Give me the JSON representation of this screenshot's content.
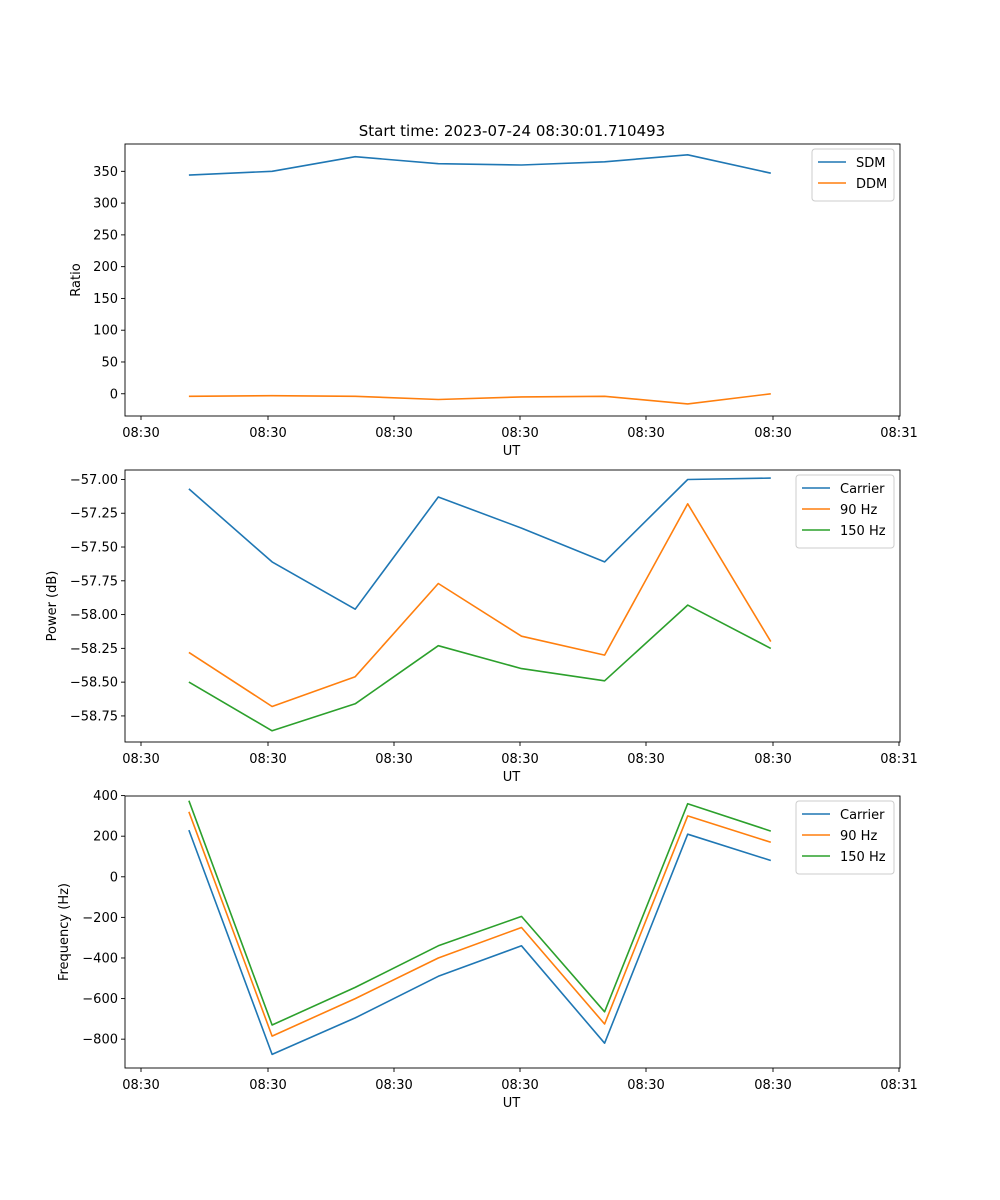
{
  "figure_title": "Start time: 2023-07-24 08:30:01.710493",
  "colors": {
    "blue": "#1f77b4",
    "orange": "#ff7f0e",
    "green": "#2ca02c"
  },
  "chart_data": [
    {
      "type": "line",
      "xlabel": "UT",
      "ylabel": "Ratio",
      "x_ticks": [
        "08:30",
        "08:30",
        "08:30",
        "08:30",
        "08:30",
        "08:30",
        "08:30"
      ],
      "x_last_tick": "08:31",
      "xlim": [
        0,
        6.06
      ],
      "x": [
        0.5,
        1.15,
        1.8,
        2.45,
        3.1,
        3.75,
        4.4,
        5.05
      ],
      "ylim": [
        -35,
        393
      ],
      "y_ticks": [
        0,
        50,
        100,
        150,
        200,
        250,
        300,
        350
      ],
      "y_tick_labels": [
        "0",
        "50",
        "100",
        "150",
        "200",
        "250",
        "300",
        "350"
      ],
      "legend": "top-right",
      "series": [
        {
          "name": "SDM",
          "color": "#1f77b4",
          "values": [
            344,
            350,
            373,
            362,
            360,
            365,
            376,
            347
          ]
        },
        {
          "name": "DDM",
          "color": "#ff7f0e",
          "values": [
            -4,
            -3,
            -4,
            -9,
            -5,
            -4,
            -16,
            0
          ]
        }
      ]
    },
    {
      "type": "line",
      "xlabel": "UT",
      "ylabel": "Power (dB)",
      "x_ticks": [
        "08:30",
        "08:30",
        "08:30",
        "08:30",
        "08:30",
        "08:30",
        "08:30"
      ],
      "x_last_tick": "08:31",
      "xlim": [
        0,
        6.06
      ],
      "x": [
        0.5,
        1.15,
        1.8,
        2.45,
        3.1,
        3.75,
        4.4,
        5.05
      ],
      "ylim": [
        -58.943,
        -56.93
      ],
      "y_ticks": [
        -58.75,
        -58.5,
        -58.25,
        -58.0,
        -57.75,
        -57.5,
        -57.25,
        -57.0
      ],
      "y_tick_labels": [
        "−58.75",
        "−58.50",
        "−58.25",
        "−58.00",
        "−57.75",
        "−57.50",
        "−57.25",
        "−57.00"
      ],
      "legend": "top-right",
      "series": [
        {
          "name": "Carrier",
          "color": "#1f77b4",
          "values": [
            -57.07,
            -57.61,
            -57.96,
            -57.13,
            -57.36,
            -57.61,
            -57.0,
            -56.99
          ]
        },
        {
          "name": "90 Hz",
          "color": "#ff7f0e",
          "values": [
            -58.28,
            -58.68,
            -58.46,
            -57.77,
            -58.16,
            -58.3,
            -57.18,
            -58.2
          ]
        },
        {
          "name": "150 Hz",
          "color": "#2ca02c",
          "values": [
            -58.5,
            -58.86,
            -58.66,
            -58.23,
            -58.4,
            -58.49,
            -57.93,
            -58.25
          ]
        }
      ]
    },
    {
      "type": "line",
      "xlabel": "UT",
      "ylabel": "Frequency (Hz)",
      "x_ticks": [
        "08:30",
        "08:30",
        "08:30",
        "08:30",
        "08:30",
        "08:30",
        "08:30"
      ],
      "x_last_tick": "08:31",
      "xlim": [
        0,
        6.06
      ],
      "x": [
        0.5,
        1.15,
        1.8,
        2.45,
        3.1,
        3.75,
        4.4,
        5.05
      ],
      "ylim": [
        -942,
        398
      ],
      "y_ticks": [
        -800,
        -600,
        -400,
        -200,
        0,
        200,
        400
      ],
      "y_tick_labels": [
        "−800",
        "−600",
        "−400",
        "−200",
        "0",
        "200",
        "400"
      ],
      "legend": "top-right",
      "series": [
        {
          "name": "Carrier",
          "color": "#1f77b4",
          "values": [
            230,
            -875,
            -695,
            -490,
            -340,
            -820,
            210,
            80
          ]
        },
        {
          "name": "90 Hz",
          "color": "#ff7f0e",
          "values": [
            320,
            -785,
            -600,
            -400,
            -250,
            -725,
            300,
            170
          ]
        },
        {
          "name": "150 Hz",
          "color": "#2ca02c",
          "values": [
            375,
            -730,
            -545,
            -340,
            -195,
            -665,
            360,
            225
          ]
        }
      ]
    }
  ]
}
